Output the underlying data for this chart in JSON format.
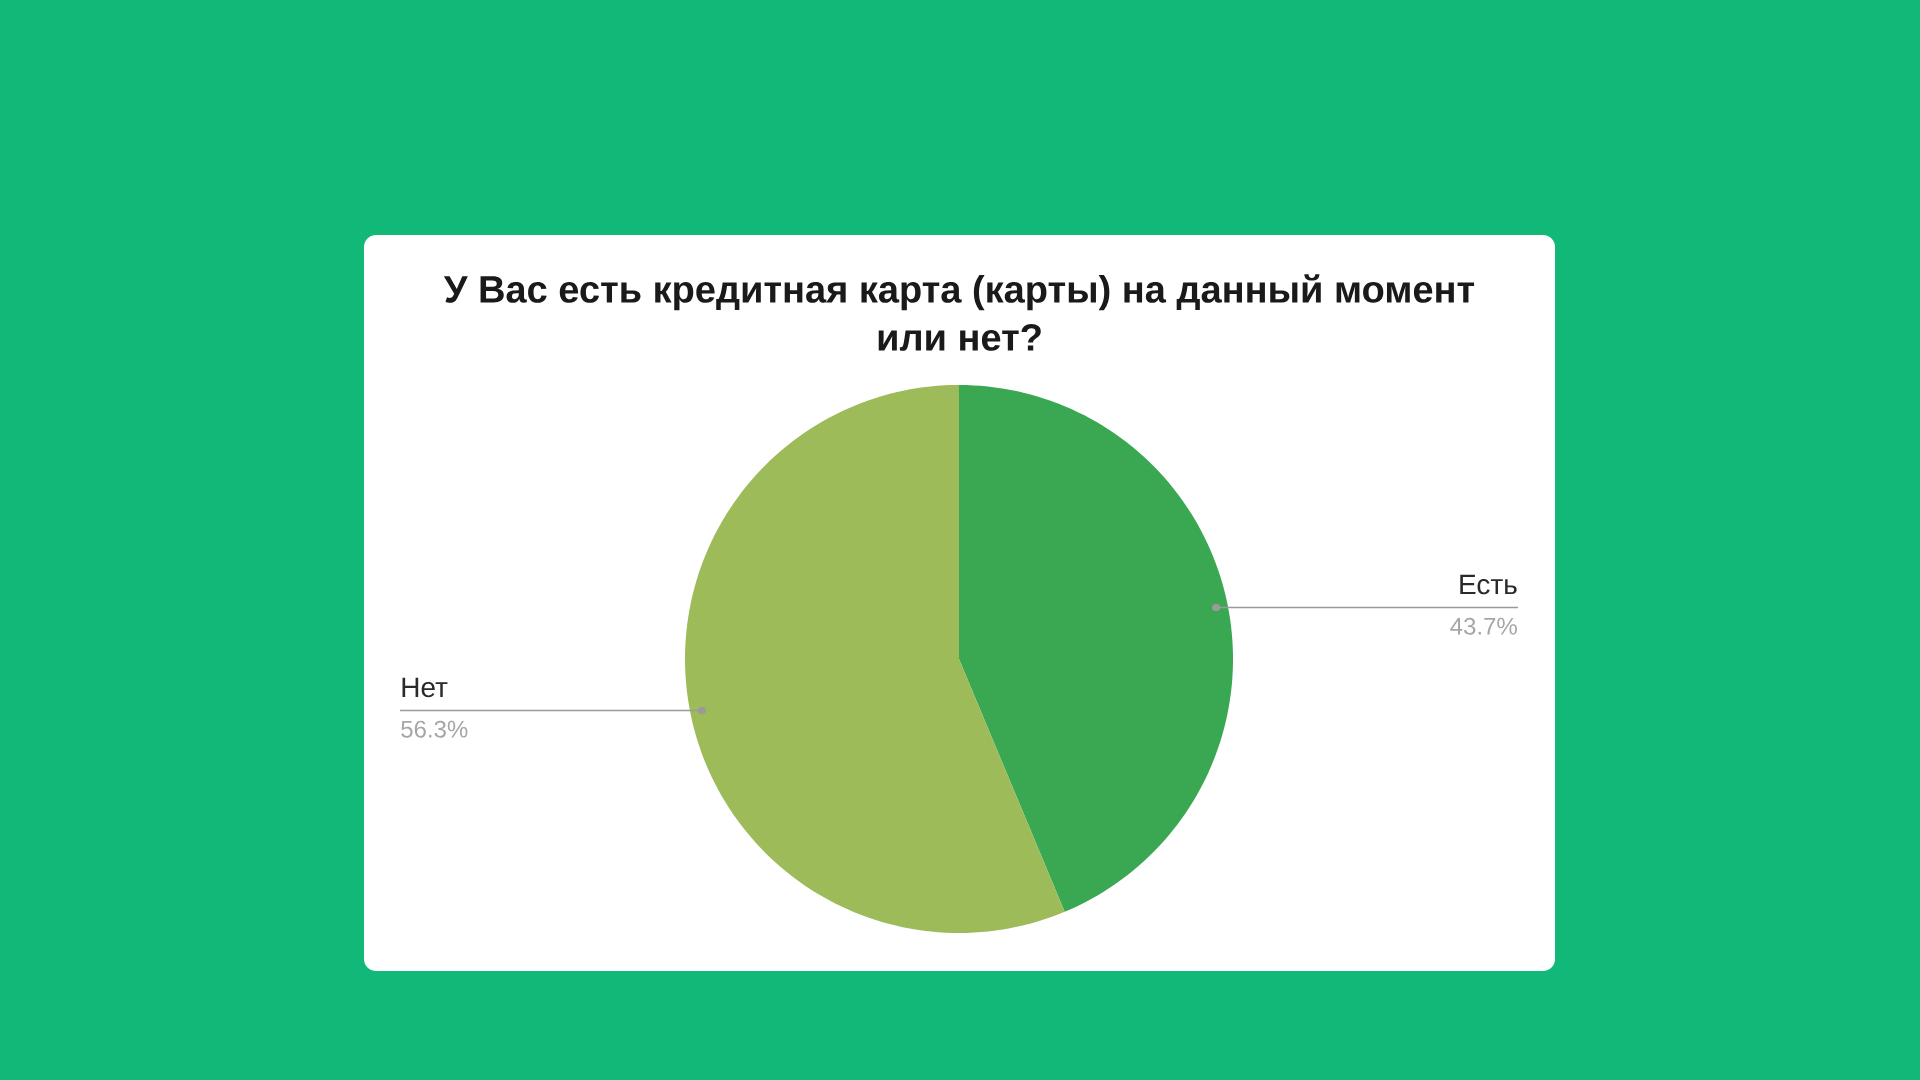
{
  "chart_data": {
    "type": "pie",
    "title": "У Вас есть кредитная карта (карты) на данный момент или нет?",
    "categories": [
      "Есть",
      "Нет"
    ],
    "values": [
      43.7,
      56.3
    ],
    "value_labels": [
      "43.7%",
      "56.3%"
    ],
    "colors": [
      "#3aa753",
      "#9dbb59"
    ]
  }
}
